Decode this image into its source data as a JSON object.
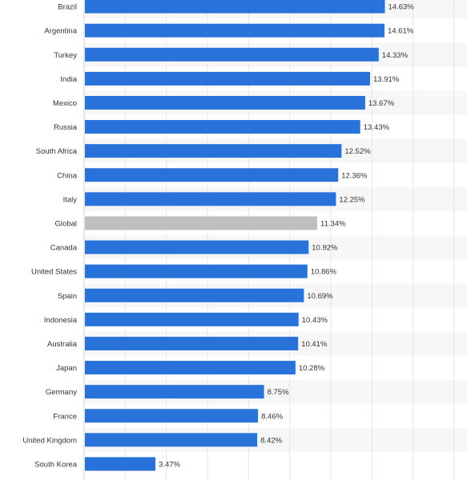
{
  "chart_data": {
    "type": "bar",
    "orientation": "horizontal",
    "categories": [
      "Brazil",
      "Argentina",
      "Turkey",
      "India",
      "Mexico",
      "Russia",
      "South Africa",
      "China",
      "Italy",
      "Global",
      "Canada",
      "United States",
      "Spain",
      "Indonesia",
      "Australia",
      "Japan",
      "Germany",
      "France",
      "United Kingdom",
      "South Korea"
    ],
    "values": [
      14.63,
      14.61,
      14.33,
      13.91,
      13.67,
      13.43,
      12.52,
      12.36,
      12.25,
      11.34,
      10.92,
      10.86,
      10.69,
      10.43,
      10.41,
      10.28,
      8.75,
      8.46,
      8.42,
      3.47
    ],
    "value_labels": [
      "14.63%",
      "14.61%",
      "14.33%",
      "13.91%",
      "13.67%",
      "13.43%",
      "12.52%",
      "12.36%",
      "12.25%",
      "11.34%",
      "10.92%",
      "10.86%",
      "10.69%",
      "10.43%",
      "10.41%",
      "10.28%",
      "8.75%",
      "8.46%",
      "8.42%",
      "3.47%"
    ],
    "highlight_category": "Global",
    "colors": {
      "bar": "#2872d9",
      "highlight": "#bfbfbf",
      "grid": "#e6e6e6",
      "stripe": "#f7f7f7"
    },
    "xlim": [
      0,
      18
    ],
    "grid": true,
    "title": "",
    "xlabel": "",
    "ylabel": ""
  }
}
